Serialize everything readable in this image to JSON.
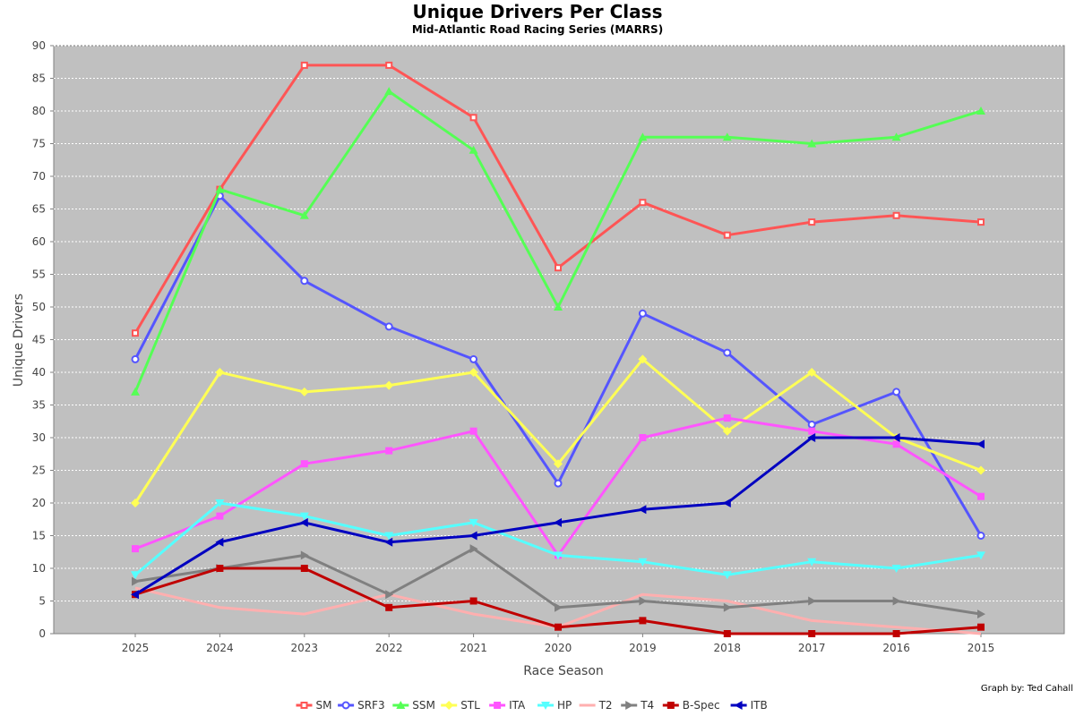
{
  "chart_data": {
    "type": "line",
    "title": "Unique Drivers Per Class",
    "subtitle": "Mid-Atlantic Road Racing Series (MARRS)",
    "xlabel": "Race Season",
    "ylabel": "Unique Drivers",
    "credit": "Graph by: Ted Cahall",
    "categories": [
      "2025",
      "2024",
      "2023",
      "2022",
      "2021",
      "2020",
      "2019",
      "2018",
      "2017",
      "2016",
      "2015"
    ],
    "ylim": [
      0,
      90
    ],
    "yticks": [
      0,
      5,
      10,
      15,
      20,
      25,
      30,
      35,
      40,
      45,
      50,
      55,
      60,
      65,
      70,
      75,
      80,
      85,
      90
    ],
    "grid": true,
    "legend_position": "bottom",
    "plot_background": "#c0c0c0",
    "series": [
      {
        "name": "SM",
        "color": "#ff5555",
        "marker": "square-open",
        "values": [
          46,
          68,
          87,
          87,
          79,
          56,
          66,
          61,
          63,
          64,
          63
        ]
      },
      {
        "name": "SRF3",
        "color": "#5555ff",
        "marker": "circle-open",
        "values": [
          42,
          67,
          54,
          47,
          42,
          23,
          49,
          43,
          32,
          37,
          15
        ]
      },
      {
        "name": "SSM",
        "color": "#55ff55",
        "marker": "triangle-up",
        "values": [
          37,
          68,
          64,
          83,
          74,
          50,
          76,
          76,
          75,
          76,
          80
        ]
      },
      {
        "name": "STL",
        "color": "#ffff55",
        "marker": "diamond",
        "values": [
          20,
          40,
          37,
          38,
          40,
          26,
          42,
          31,
          40,
          30,
          25
        ]
      },
      {
        "name": "ITA",
        "color": "#ff55ff",
        "marker": "square",
        "values": [
          13,
          18,
          26,
          28,
          31,
          12,
          30,
          33,
          31,
          29,
          21
        ]
      },
      {
        "name": "HP",
        "color": "#55ffff",
        "marker": "triangle-down",
        "values": [
          9,
          20,
          18,
          15,
          17,
          12,
          11,
          9,
          11,
          10,
          12
        ]
      },
      {
        "name": "T2",
        "color": "#ffafaf",
        "marker": "none",
        "values": [
          7,
          4,
          3,
          6,
          3,
          1,
          6,
          5,
          2,
          1,
          0
        ]
      },
      {
        "name": "T4",
        "color": "#808080",
        "marker": "triangle-right",
        "values": [
          8,
          10,
          12,
          6,
          13,
          4,
          5,
          4,
          5,
          5,
          3
        ]
      },
      {
        "name": "B-Spec",
        "color": "#c00000",
        "marker": "square",
        "values": [
          6,
          10,
          10,
          4,
          5,
          1,
          2,
          0,
          0,
          0,
          1
        ]
      },
      {
        "name": "ITB",
        "color": "#0000c0",
        "marker": "triangle-left",
        "values": [
          6,
          14,
          17,
          14,
          15,
          17,
          19,
          20,
          30,
          30,
          29
        ]
      }
    ]
  }
}
